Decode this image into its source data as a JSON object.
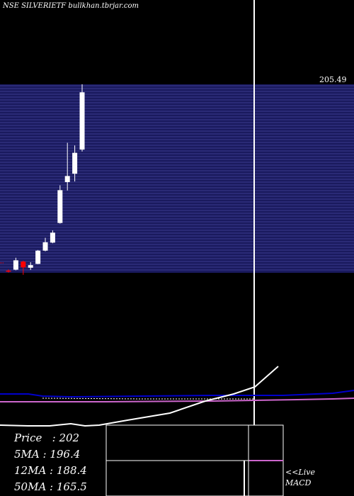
{
  "header": {
    "title": "NSE SILVERIETF bullkhan.tbrjar.com"
  },
  "colors": {
    "background": "#000000",
    "band": "#1a1a5e",
    "band_line": "#3b3b8f",
    "candle_up": "#ffffff",
    "candle_down": "#ff0000",
    "ma_line": "#0000cc",
    "signal_line": "#cc66cc",
    "indicator_line": "#ffffff",
    "cursor_line": "#ffffff"
  },
  "chart_data": {
    "type": "candlestick",
    "price_label": "205.49",
    "ylim": [
      149,
      208
    ],
    "candles": [
      {
        "open": 149.9,
        "high": 150.3,
        "low": 149.3,
        "close": 149.8
      },
      {
        "open": 150.2,
        "high": 153.9,
        "low": 150.0,
        "close": 153.1
      },
      {
        "open": 152.7,
        "high": 153.0,
        "low": 148.6,
        "close": 150.9
      },
      {
        "open": 150.8,
        "high": 152.5,
        "low": 150.1,
        "close": 151.6
      },
      {
        "open": 152.0,
        "high": 156.3,
        "low": 151.9,
        "close": 156.1
      },
      {
        "open": 156.1,
        "high": 160.1,
        "low": 155.9,
        "close": 158.7
      },
      {
        "open": 158.6,
        "high": 162.4,
        "low": 158.4,
        "close": 161.7
      },
      {
        "open": 164.7,
        "high": 176.4,
        "low": 164.5,
        "close": 174.9
      },
      {
        "open": 177.4,
        "high": 189.6,
        "low": 174.8,
        "close": 179.3
      },
      {
        "open": 180.0,
        "high": 188.8,
        "low": 177.6,
        "close": 186.5
      },
      {
        "open": 187.5,
        "high": 207.8,
        "low": 186.9,
        "close": 205.3
      }
    ],
    "indicators": {
      "price": 202,
      "ma5": 196.4,
      "ma12": 188.4,
      "ma50": 165.5
    }
  },
  "legend": {
    "price": "Price   : 202",
    "ma5": "5MA : 196.4",
    "ma12": "12MA : 188.4",
    "ma50": "50MA : 165.5"
  },
  "macd": {
    "live_label": "<<Live",
    "name": "MACD"
  }
}
